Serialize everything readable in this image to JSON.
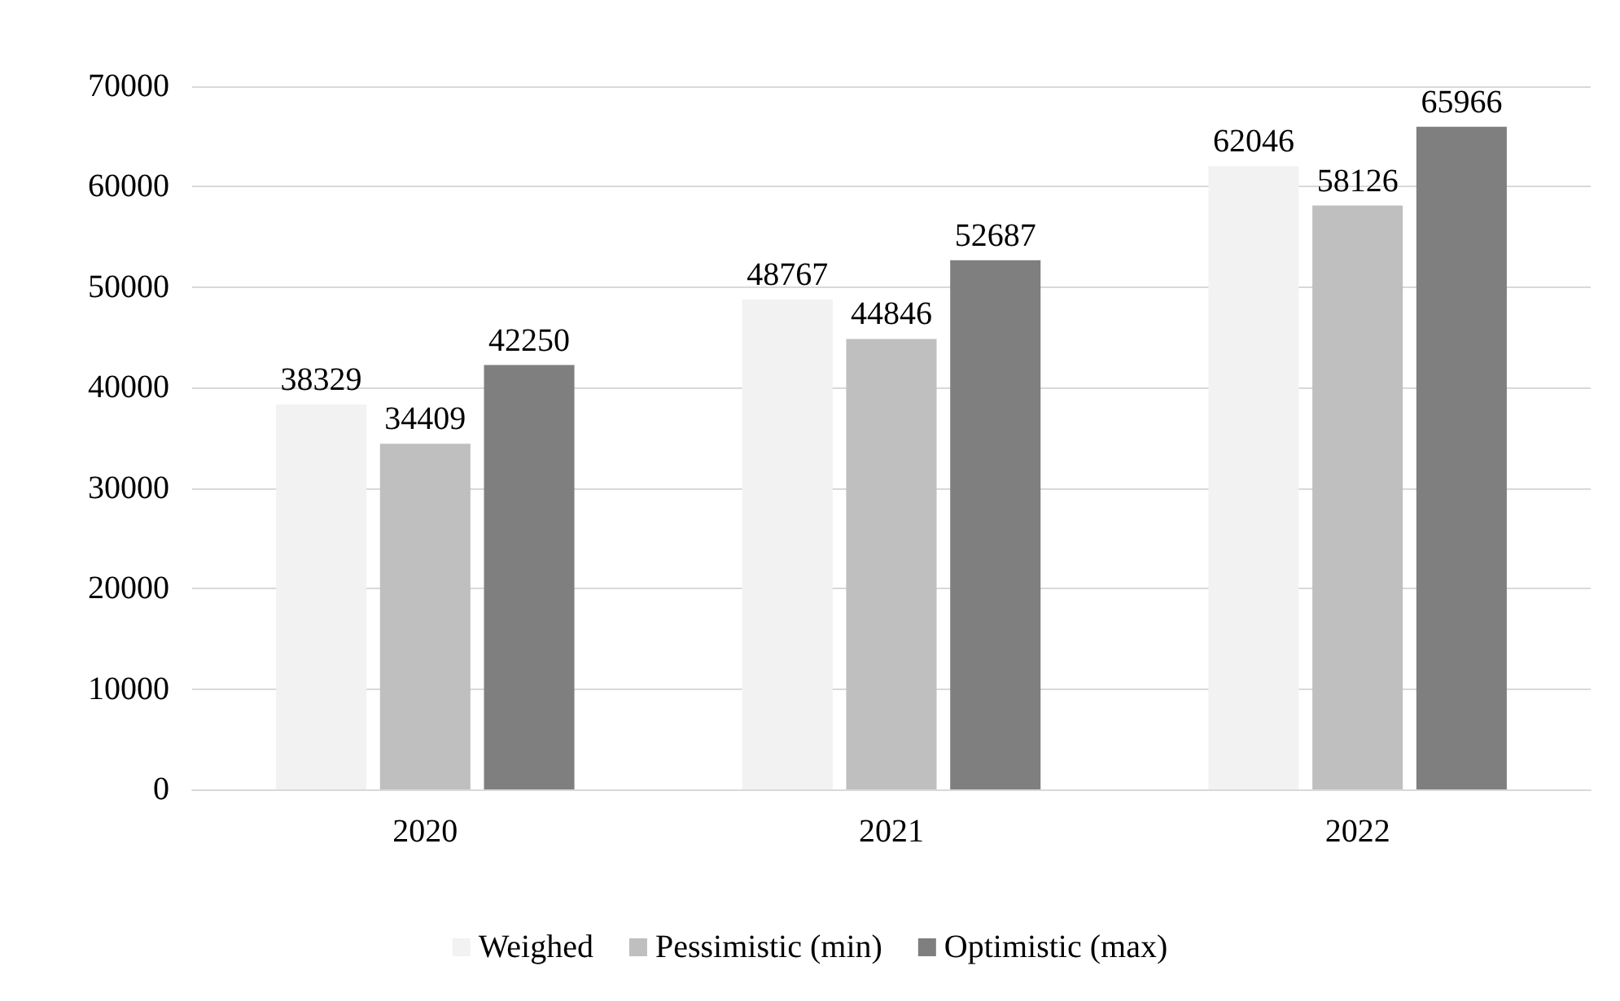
{
  "chart_data": {
    "type": "bar",
    "categories": [
      "2020",
      "2021",
      "2022"
    ],
    "series": [
      {
        "name": "Weighed",
        "color": "#f2f2f2",
        "values": [
          38329,
          48767,
          62046
        ]
      },
      {
        "name": "Pessimistic (min)",
        "color": "#bfbfbf",
        "values": [
          34409,
          44846,
          58126
        ]
      },
      {
        "name": "Optimistic (max)",
        "color": "#7f7f7f",
        "values": [
          42250,
          52687,
          65966
        ]
      }
    ],
    "ylim": [
      0,
      70000
    ],
    "yticks": [
      0,
      10000,
      20000,
      30000,
      40000,
      50000,
      60000,
      70000
    ],
    "grid": "y",
    "legend": "bottom",
    "data_labels": true
  }
}
